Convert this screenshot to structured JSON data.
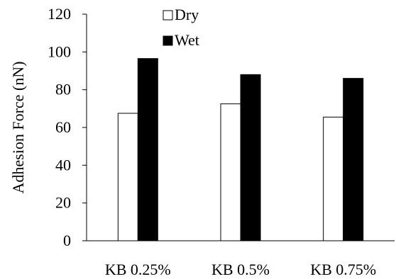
{
  "chart_data": {
    "type": "bar",
    "title": "",
    "xlabel": "",
    "ylabel": "Adhesion Force (nN)",
    "ylim": [
      0,
      120
    ],
    "yticks": [
      0,
      20,
      40,
      60,
      80,
      100,
      120
    ],
    "categories": [
      "KB 0.25%",
      "KB 0.5%",
      "KB 0.75%"
    ],
    "series": [
      {
        "name": "Dry",
        "values": [
          67.5,
          72.5,
          65.5
        ],
        "fill": "#ffffff",
        "stroke": "#000000"
      },
      {
        "name": "Wet",
        "values": [
          96.5,
          88.0,
          86.0
        ],
        "fill": "#000000",
        "stroke": "#000000"
      }
    ],
    "legend_position": "top",
    "grid": false
  }
}
